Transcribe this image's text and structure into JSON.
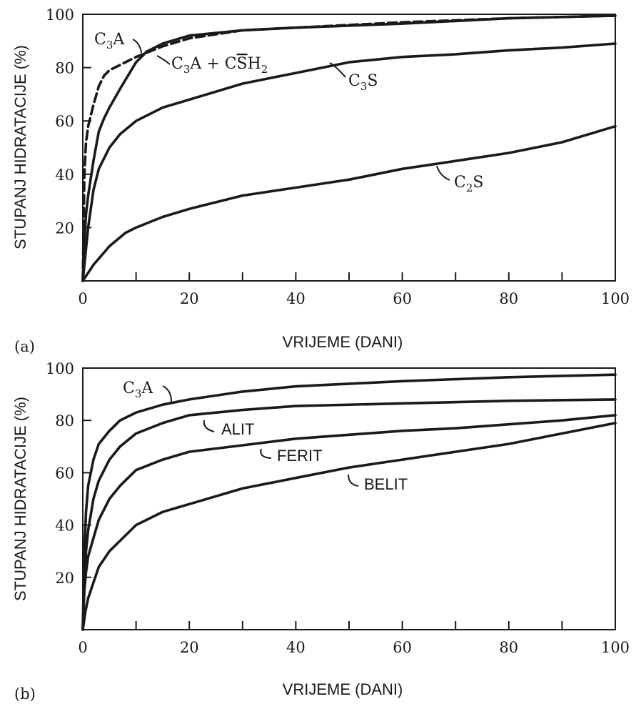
{
  "chart_data": [
    {
      "type": "line",
      "panel_label": "(a)",
      "xlabel": "VRIJEME (DANI)",
      "ylabel": "STUPANJ  HIDRATACIJE (%)",
      "xlim": [
        0,
        100
      ],
      "ylim": [
        0,
        100
      ],
      "x_ticks": [
        0,
        20,
        40,
        60,
        80,
        100
      ],
      "y_ticks": [
        20,
        40,
        60,
        80,
        100
      ],
      "grid": false,
      "series": [
        {
          "name": "C₃A",
          "style": "dashed",
          "points": [
            [
              0,
              0
            ],
            [
              0.3,
              40
            ],
            [
              0.6,
              52
            ],
            [
              1,
              58
            ],
            [
              2,
              66
            ],
            [
              3,
              73
            ],
            [
              4,
              77
            ],
            [
              5,
              79
            ],
            [
              7,
              81
            ],
            [
              10,
              84
            ],
            [
              15,
              88
            ],
            [
              20,
              91
            ],
            [
              30,
              94
            ],
            [
              40,
              95
            ],
            [
              60,
              97
            ],
            [
              80,
              98.5
            ],
            [
              100,
              99.5
            ]
          ]
        },
        {
          "name": "C₃A + CS̄H₂",
          "style": "solid",
          "points": [
            [
              0,
              0
            ],
            [
              0.3,
              15
            ],
            [
              0.6,
              25
            ],
            [
              1,
              32
            ],
            [
              2,
              45
            ],
            [
              3,
              56
            ],
            [
              4,
              61
            ],
            [
              5,
              65
            ],
            [
              7,
              72
            ],
            [
              10,
              82
            ],
            [
              12,
              86
            ],
            [
              15,
              89
            ],
            [
              20,
              92
            ],
            [
              30,
              94
            ],
            [
              40,
              95
            ],
            [
              60,
              96.5
            ],
            [
              80,
              98.5
            ],
            [
              100,
              99.5
            ]
          ]
        },
        {
          "name": "C₃S",
          "style": "solid",
          "points": [
            [
              0,
              0
            ],
            [
              0.5,
              10
            ],
            [
              1,
              20
            ],
            [
              2,
              34
            ],
            [
              3,
              42
            ],
            [
              5,
              50
            ],
            [
              7,
              55
            ],
            [
              10,
              60
            ],
            [
              15,
              65
            ],
            [
              20,
              68
            ],
            [
              30,
              74
            ],
            [
              40,
              78
            ],
            [
              50,
              82
            ],
            [
              60,
              84
            ],
            [
              70,
              85
            ],
            [
              80,
              86.5
            ],
            [
              90,
              87.5
            ],
            [
              100,
              89
            ]
          ]
        },
        {
          "name": "C₂S",
          "style": "solid",
          "points": [
            [
              0,
              0
            ],
            [
              2,
              6
            ],
            [
              5,
              13
            ],
            [
              8,
              18
            ],
            [
              10,
              20
            ],
            [
              15,
              24
            ],
            [
              20,
              27
            ],
            [
              30,
              32
            ],
            [
              40,
              35
            ],
            [
              50,
              38
            ],
            [
              60,
              42
            ],
            [
              70,
              45
            ],
            [
              80,
              48
            ],
            [
              90,
              52
            ],
            [
              100,
              58
            ]
          ]
        }
      ],
      "labels": [
        {
          "text_parts": [
            "C",
            "3",
            "A"
          ],
          "series": 0
        },
        {
          "text_parts": [
            "C",
            "3",
            "A + C",
            "S",
            "H",
            "2"
          ],
          "series": 1
        },
        {
          "text_parts": [
            "C",
            "3",
            "S"
          ],
          "series": 2
        },
        {
          "text_parts": [
            "C",
            "2",
            "S"
          ],
          "series": 3
        }
      ]
    },
    {
      "type": "line",
      "panel_label": "(b)",
      "xlabel": "VRIJEME (DANI)",
      "ylabel": "STUPANJ  HIDRATACIJE (%)",
      "xlim": [
        0,
        100
      ],
      "ylim": [
        0,
        100
      ],
      "x_ticks": [
        0,
        20,
        40,
        60,
        80,
        100
      ],
      "y_ticks": [
        20,
        40,
        60,
        80,
        100
      ],
      "grid": false,
      "series": [
        {
          "name": "C₃A",
          "style": "solid",
          "points": [
            [
              0,
              0
            ],
            [
              0.3,
              30
            ],
            [
              0.6,
              45
            ],
            [
              1,
              55
            ],
            [
              2,
              65
            ],
            [
              3,
              71
            ],
            [
              5,
              76
            ],
            [
              7,
              80
            ],
            [
              10,
              83
            ],
            [
              15,
              86
            ],
            [
              20,
              88
            ],
            [
              30,
              91
            ],
            [
              40,
              93
            ],
            [
              60,
              95
            ],
            [
              80,
              96.5
            ],
            [
              100,
              97.5
            ]
          ]
        },
        {
          "name": "ALIT",
          "style": "solid",
          "points": [
            [
              0,
              0
            ],
            [
              0.3,
              20
            ],
            [
              0.6,
              30
            ],
            [
              1,
              38
            ],
            [
              2,
              50
            ],
            [
              3,
              57
            ],
            [
              5,
              65
            ],
            [
              7,
              70
            ],
            [
              10,
              75
            ],
            [
              15,
              79
            ],
            [
              20,
              82
            ],
            [
              30,
              84
            ],
            [
              40,
              85.5
            ],
            [
              60,
              86.5
            ],
            [
              80,
              87.5
            ],
            [
              100,
              88
            ]
          ]
        },
        {
          "name": "FERIT",
          "style": "solid",
          "points": [
            [
              0,
              0
            ],
            [
              0.3,
              15
            ],
            [
              0.6,
              22
            ],
            [
              1,
              28
            ],
            [
              2,
              35
            ],
            [
              3,
              42
            ],
            [
              5,
              50
            ],
            [
              7,
              55
            ],
            [
              10,
              61
            ],
            [
              15,
              65
            ],
            [
              20,
              68
            ],
            [
              30,
              70.5
            ],
            [
              40,
              73
            ],
            [
              50,
              74.5
            ],
            [
              60,
              76
            ],
            [
              70,
              77
            ],
            [
              80,
              78.5
            ],
            [
              90,
              80
            ],
            [
              100,
              82
            ]
          ]
        },
        {
          "name": "BELIT",
          "style": "solid",
          "points": [
            [
              0,
              0
            ],
            [
              0.5,
              7
            ],
            [
              1,
              12
            ],
            [
              2,
              18
            ],
            [
              3,
              24
            ],
            [
              5,
              30
            ],
            [
              7,
              34
            ],
            [
              10,
              40
            ],
            [
              15,
              45
            ],
            [
              20,
              48
            ],
            [
              30,
              54
            ],
            [
              40,
              58
            ],
            [
              50,
              62
            ],
            [
              60,
              65
            ],
            [
              70,
              68
            ],
            [
              80,
              71
            ],
            [
              90,
              75
            ],
            [
              100,
              79
            ]
          ]
        }
      ],
      "labels": [
        {
          "text_parts": [
            "C",
            "3",
            "A"
          ],
          "series": 0
        },
        {
          "text_parts": [
            "ALIT"
          ],
          "series": 1
        },
        {
          "text_parts": [
            "FERIT"
          ],
          "series": 2
        },
        {
          "text_parts": [
            "BELIT"
          ],
          "series": 3
        }
      ]
    }
  ]
}
